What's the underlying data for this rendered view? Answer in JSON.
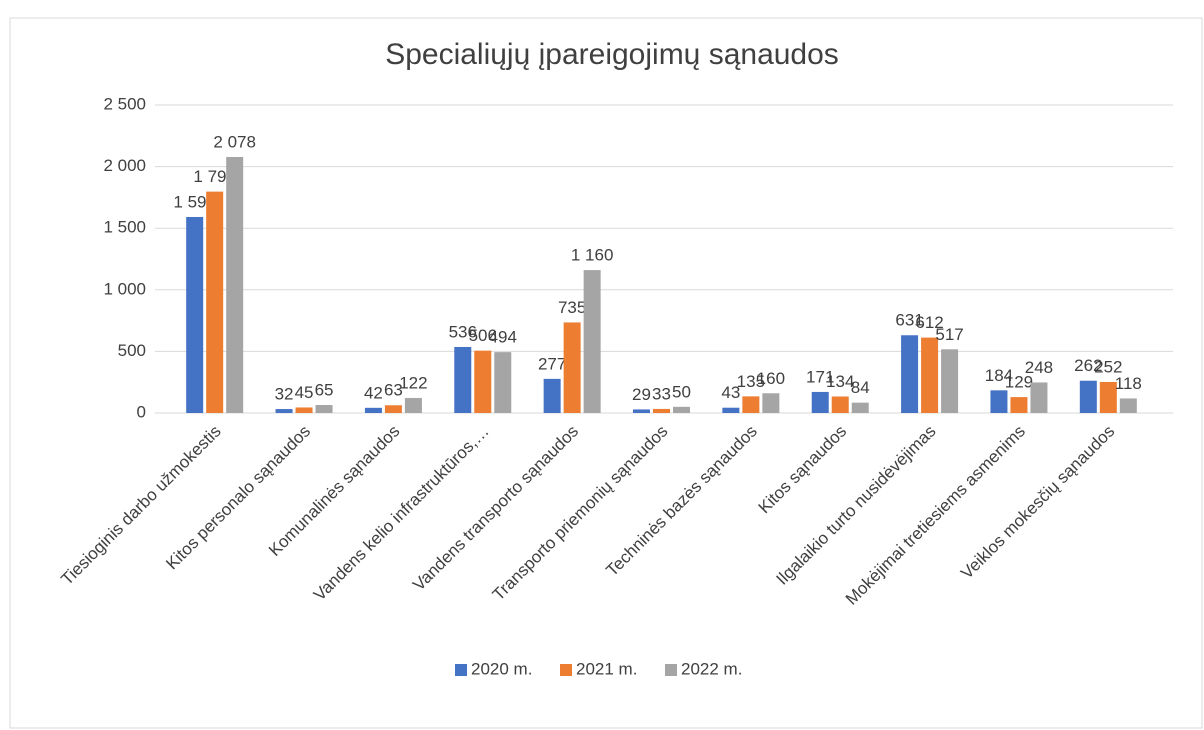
{
  "chart_data": {
    "type": "bar",
    "title": "Specialiųjų įpareigojimų sąnaudos",
    "categories": [
      "Tiesioginis darbo užmokestis",
      "Kitos personalo sąnaudos",
      "Komunalinės sąnaudos",
      "Vandens kelio infrastruktūros,…",
      "Vandens transporto sąnaudos",
      "Transporto priemonių sąnaudos",
      "Techninės bazės sąnaudos",
      "Kitos sąnaudos",
      "Ilgalaikio turto nusidėvėjimas",
      "Mokėjimai tretiesiems asmenims",
      "Veiklos mokesčių sąnaudos"
    ],
    "series": [
      {
        "name": "2020 m.",
        "color": "#4472c4",
        "values": [
          1591,
          32,
          42,
          536,
          277,
          29,
          43,
          171,
          631,
          184,
          262
        ],
        "value_labels": [
          "1 591",
          "32",
          "42",
          "536",
          "277",
          "29",
          "43",
          "171",
          "631",
          "184",
          "262"
        ]
      },
      {
        "name": "2021 m.",
        "color": "#ed7d31",
        "values": [
          1797,
          45,
          63,
          506,
          735,
          33,
          135,
          134,
          612,
          129,
          252
        ],
        "value_labels": [
          "1 797",
          "45",
          "63",
          "506",
          "735",
          "33",
          "135",
          "134",
          "612",
          "129",
          "252"
        ]
      },
      {
        "name": "2022 m.",
        "color": "#a5a5a5",
        "values": [
          2078,
          65,
          122,
          494,
          1160,
          50,
          160,
          84,
          517,
          248,
          118
        ],
        "value_labels": [
          "2 078",
          "65",
          "122",
          "494",
          "1 160",
          "50",
          "160",
          "84",
          "517",
          "248",
          "118"
        ]
      }
    ],
    "ylim": [
      0,
      2500
    ],
    "yticks": [
      0,
      500,
      {
        "value": 1000,
        "label": "1 000"
      },
      {
        "value": 1500,
        "label": "1 500"
      },
      {
        "value": 2000,
        "label": "2 000"
      },
      {
        "value": 2500,
        "label": "2 500"
      }
    ],
    "grid": true,
    "legend": "bottom"
  }
}
